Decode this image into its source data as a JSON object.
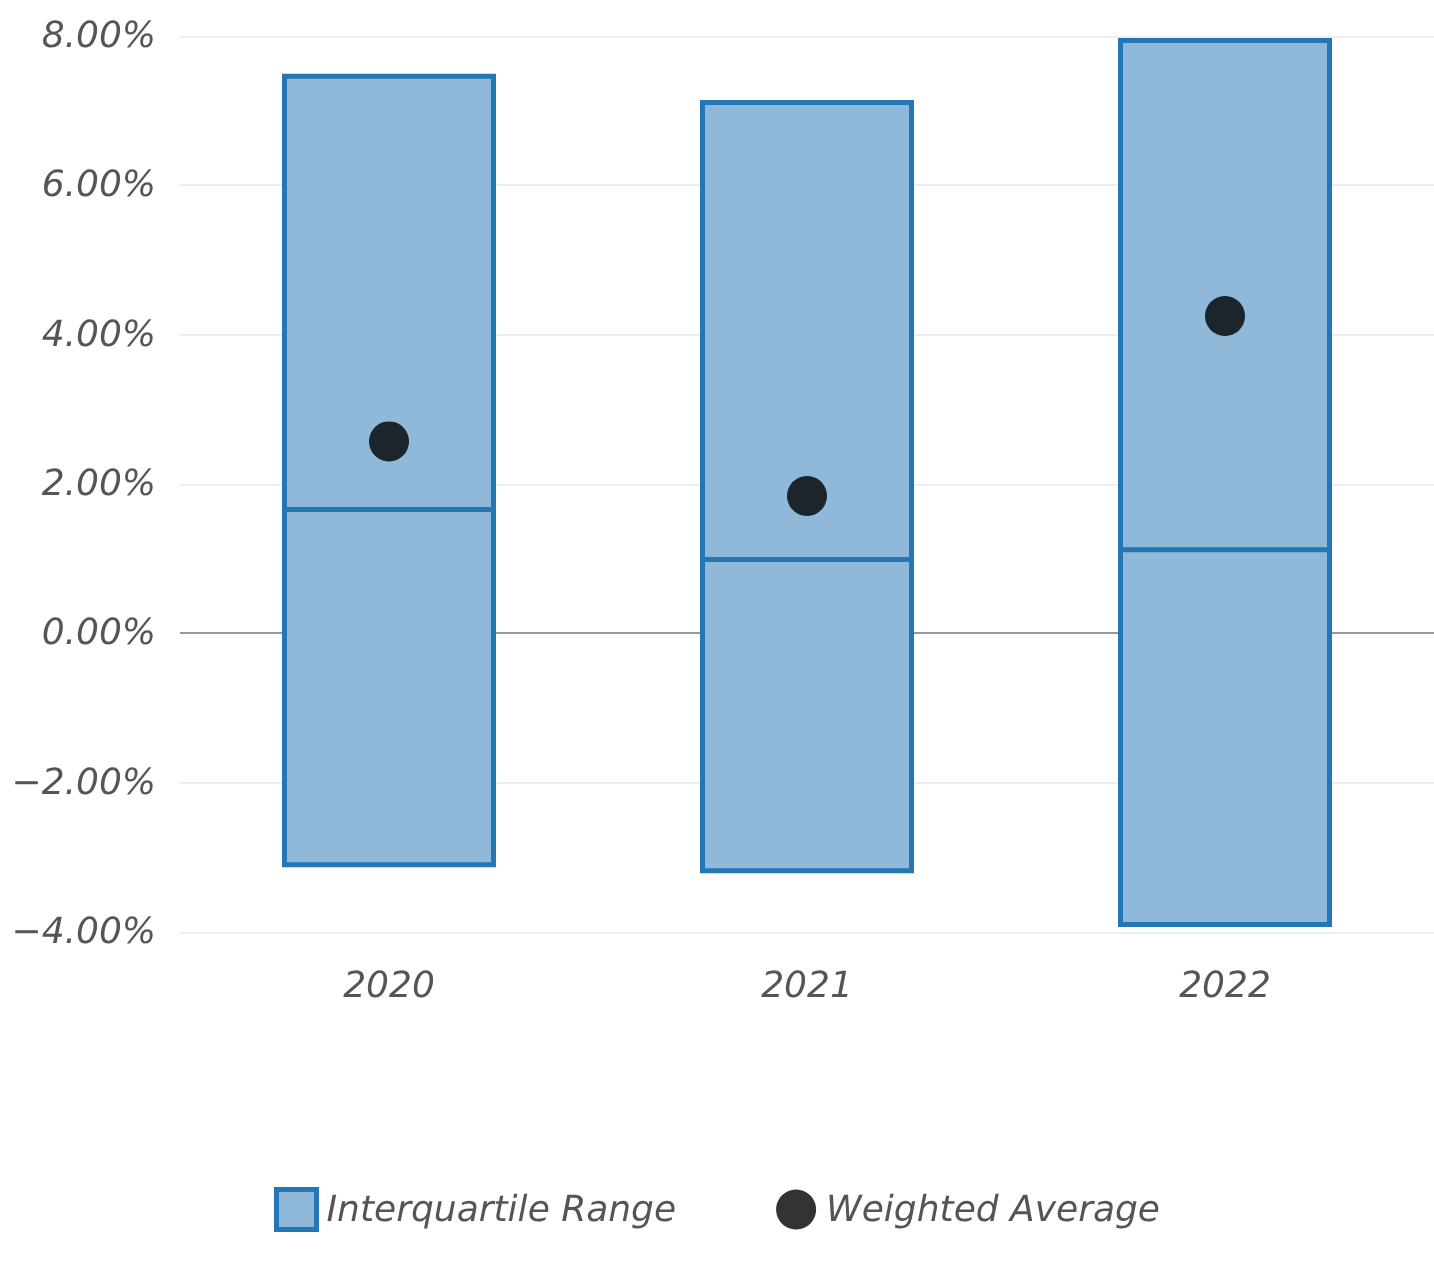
{
  "chart_data": {
    "type": "box",
    "categories": [
      "2020",
      "2021",
      "2022"
    ],
    "series": [
      {
        "name": "Interquartile Range",
        "color": "#8fb8d9",
        "boxes": [
          {
            "low": -3.1,
            "q1": -3.1,
            "median": 1.66,
            "q3": 7.46,
            "high": 7.46
          },
          {
            "low": -3.18,
            "q1": -3.18,
            "median": 0.99,
            "q3": 7.11,
            "high": 7.11
          },
          {
            "low": -3.9,
            "q1": -3.9,
            "median": 1.12,
            "q3": 7.94,
            "high": 7.94
          }
        ]
      },
      {
        "name": "Weighted Average",
        "type": "scatter",
        "color": "#000000",
        "values": [
          2.57,
          1.84,
          4.25
        ]
      }
    ],
    "ylim": [
      -4,
      8
    ],
    "yticks": [
      {
        "value": -4,
        "label": "−4.00%"
      },
      {
        "value": -2,
        "label": "−2.00%"
      },
      {
        "value": 0,
        "label": "0.00%"
      },
      {
        "value": 2,
        "label": "2.00%"
      },
      {
        "value": 4,
        "label": "4.00%"
      },
      {
        "value": 6,
        "label": "6.00%"
      },
      {
        "value": 8,
        "label": "8.00%"
      }
    ],
    "ref_lines": [
      {
        "axis": "y",
        "value": 0,
        "color": "#999999"
      }
    ],
    "grid": "y",
    "legend": "bottom",
    "marker": "circle"
  }
}
